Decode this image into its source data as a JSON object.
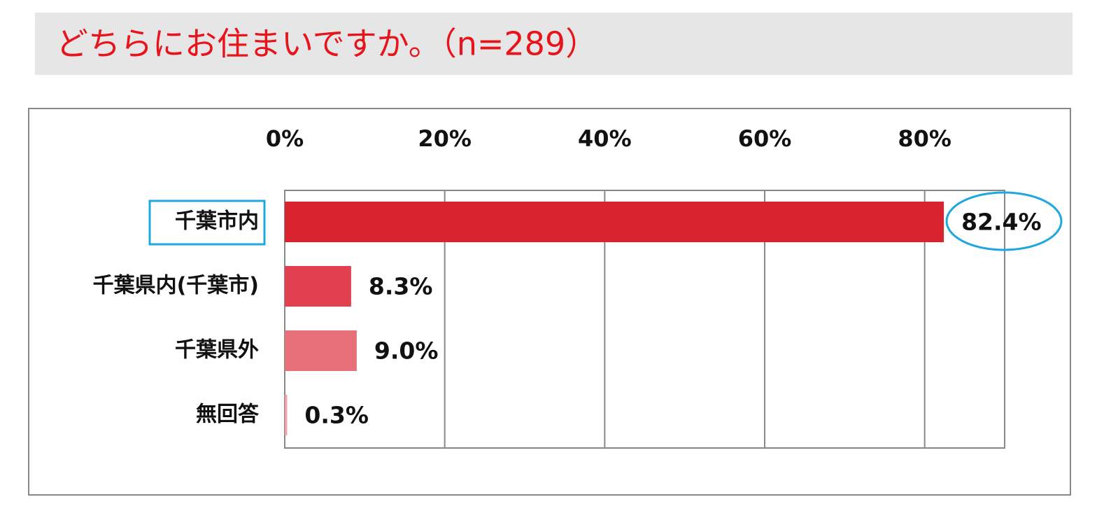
{
  "chart_data": {
    "type": "hbar",
    "title": "どちらにお住まいですか。（n=289）",
    "categories": [
      "千葉市内",
      "千葉県内(千葉市)",
      "千葉県外",
      "無回答"
    ],
    "values": [
      82.4,
      8.3,
      9.0,
      0.3
    ],
    "value_labels": [
      "82.4%",
      "8.3%",
      "9.0%",
      "0.3%"
    ],
    "colors": [
      "#d9242f",
      "#e0404f",
      "#e8707a",
      "#f0a0a8"
    ],
    "xlim": [
      0,
      90
    ],
    "xticks": [
      {
        "value": 0,
        "label": "0%"
      },
      {
        "value": 20,
        "label": "20%"
      },
      {
        "value": 40,
        "label": "40%"
      },
      {
        "value": 60,
        "label": "60%"
      },
      {
        "value": 80,
        "label": "80%"
      }
    ],
    "grid": true
  }
}
